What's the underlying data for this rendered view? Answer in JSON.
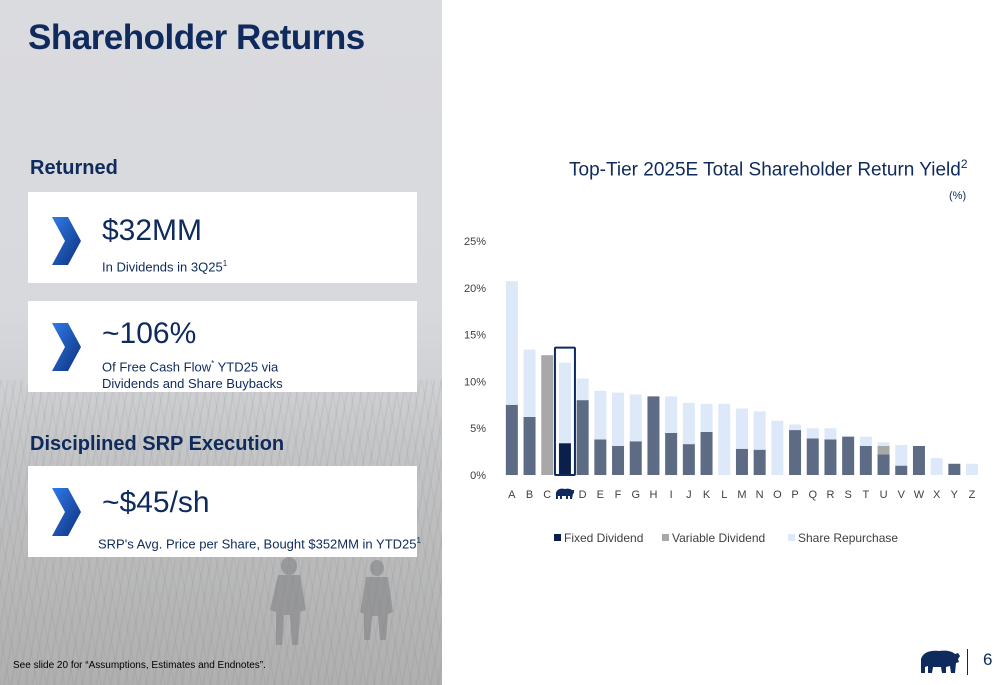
{
  "page_title": "Shareholder Returns",
  "returned": {
    "heading": "Returned",
    "cards": [
      {
        "big": "$32MM",
        "line1": "In Dividends in 3Q25",
        "sup1": "1",
        "line1_suffix": "",
        "line2": ""
      },
      {
        "big": "~106%",
        "line1": "Of Free Cash Flow",
        "sup1": "*",
        "line1_suffix": " YTD25 via",
        "line2": "Dividends and Share Buybacks"
      }
    ]
  },
  "srp": {
    "heading": "Disciplined SRP Execution",
    "card": {
      "big": "~$45/sh",
      "line1": "SRP's Avg. Price per Share, Bought $352MM in YTD25",
      "sup1": "1"
    }
  },
  "footnote": "See slide 20 for “Assumptions, Estimates and Endnotes”.",
  "page_number": "6",
  "icons": {
    "card_icon": "chevron-icon",
    "company_logo": "bear-logo-icon"
  },
  "colors": {
    "navy": "#0f2a5c",
    "fixed_dividend": "#5d6b85",
    "fixed_dividend_highlight": "#0a1f4a",
    "variable_dividend": "#a8a8a8",
    "share_repurchase": "#dde9f8",
    "highlight_outline": "#0f2a5c"
  },
  "chart_data": {
    "type": "bar",
    "stacked": true,
    "title": "Top-Tier 2025E Total Shareholder Return Yield",
    "title_superscript": "2",
    "unit_label": "(%)",
    "ylim": [
      0,
      25
    ],
    "yticks": [
      "0%",
      "5%",
      "10%",
      "15%",
      "20%",
      "25%"
    ],
    "ytick_values": [
      0,
      5,
      10,
      15,
      20,
      25
    ],
    "categories": [
      "A",
      "B",
      "C",
      "bear-logo",
      "D",
      "E",
      "F",
      "G",
      "H",
      "I",
      "J",
      "K",
      "L",
      "M",
      "N",
      "O",
      "P",
      "Q",
      "R",
      "S",
      "T",
      "U",
      "V",
      "W",
      "X",
      "Y",
      "Z"
    ],
    "highlighted_category": "bear-logo",
    "series": [
      {
        "name": "Fixed Dividend",
        "values": [
          7.5,
          6.2,
          0,
          3.4,
          8.0,
          3.8,
          3.1,
          3.6,
          8.4,
          4.5,
          3.3,
          4.6,
          0,
          2.8,
          2.7,
          0,
          4.8,
          3.9,
          3.8,
          4.1,
          3.1,
          2.2,
          1.0,
          3.1,
          0,
          1.2,
          0
        ]
      },
      {
        "name": "Variable Dividend",
        "values": [
          0,
          0,
          12.8,
          0,
          0,
          0,
          0,
          0,
          0,
          0,
          0,
          0,
          0,
          0,
          0,
          0,
          0,
          0,
          0,
          0,
          0,
          0.9,
          0,
          0,
          0,
          0,
          0
        ]
      },
      {
        "name": "Share Repurchase",
        "values": [
          13.2,
          7.2,
          0,
          8.6,
          2.3,
          5.2,
          5.7,
          5.0,
          0,
          3.9,
          4.4,
          3.0,
          7.6,
          4.3,
          4.1,
          5.8,
          0.6,
          1.1,
          1.2,
          0,
          1.0,
          0.4,
          2.2,
          0,
          1.8,
          0,
          1.2
        ]
      }
    ],
    "legend_position": "bottom",
    "grid": false
  }
}
